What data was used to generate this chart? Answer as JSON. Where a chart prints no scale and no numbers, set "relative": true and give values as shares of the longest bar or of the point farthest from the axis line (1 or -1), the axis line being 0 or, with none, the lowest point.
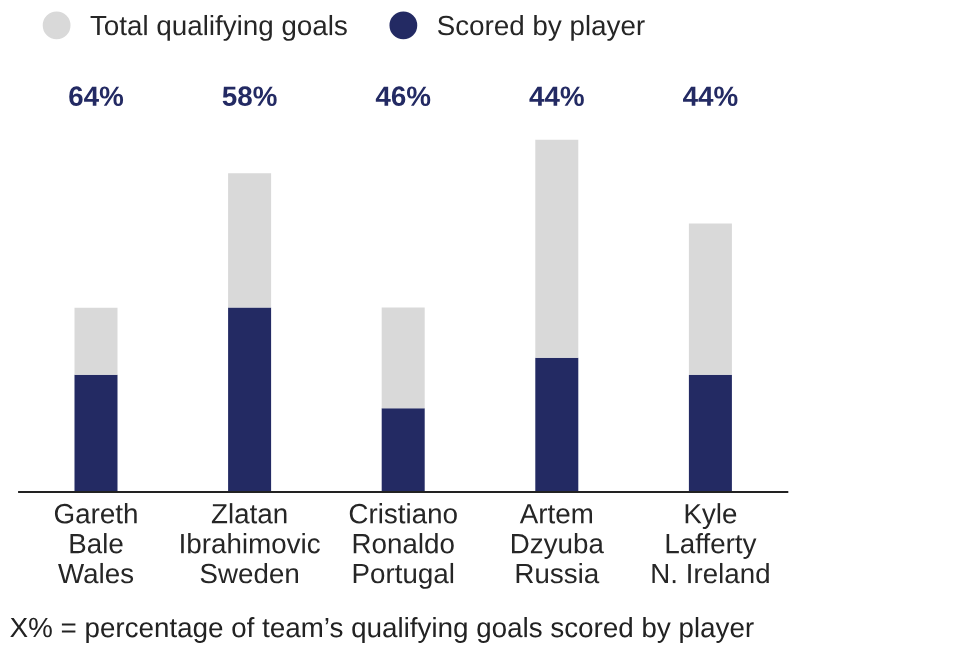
{
  "chart_data": {
    "type": "bar",
    "stacked": true,
    "relative": true,
    "categories": [
      "Gareth\nBale\nWales",
      "Zlatan\nIbrahimovic\nSweden",
      "Cristiano\nRonaldo\nPortugal",
      "Artem\nDzyuba\nRussia",
      "Kyle\nLafferty\nN. Ireland"
    ],
    "series": [
      {
        "name": "Scored by player",
        "color": "#232a63",
        "values": [
          0.333,
          0.524,
          0.238,
          0.381,
          0.333
        ]
      },
      {
        "name": "Total qualifying goals",
        "color": "#d9d9d9",
        "values": [
          0.19,
          0.381,
          0.286,
          0.619,
          0.429
        ]
      }
    ],
    "legend": "top left",
    "grid": false,
    "annotations": [
      "64%",
      "58%",
      "46%",
      "44%",
      "44%",
      "X% = percentage of team’s qualifying goals scored by player"
    ]
  }
}
